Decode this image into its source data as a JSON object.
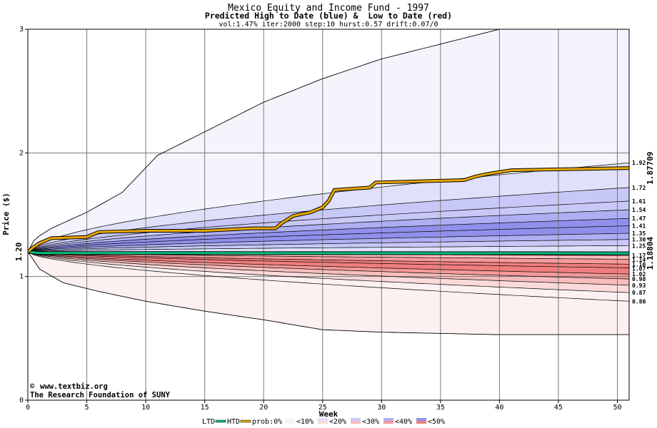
{
  "chart_data": {
    "type": "area",
    "title": "Mexico Equity and Income Fund - 1997",
    "subtitle": "Predicted High to Date (blue) &  Low to Date (red)",
    "params_line": "vol:1.47% iter:2000 step:10 hurst:0.57 drift:0.07/0",
    "xlabel": "Week",
    "ylabel": "Price ($)",
    "xlim": [
      0,
      51
    ],
    "ylim": [
      0,
      3
    ],
    "x_ticks": [
      0,
      5,
      10,
      15,
      20,
      25,
      30,
      35,
      40,
      45,
      50
    ],
    "y_ticks": [
      0,
      1,
      2,
      3
    ],
    "grid": true,
    "start_price_label": "1.20",
    "start_price": 1.2,
    "htd_final_label": "1.87709",
    "htd_final": 1.87709,
    "ltd_final_label": "1.18804",
    "ltd_final": 1.18804,
    "right_labels": [
      "1.92",
      "1.72",
      "1.61",
      "1.54",
      "1.47",
      "1.41",
      "1.35",
      "1.30",
      "1.25",
      "1.17",
      "1.14",
      "1.10",
      "1.07",
      "1.02",
      "0.98",
      "0.93",
      "0.87",
      "0.80"
    ],
    "outer_high": [
      [
        0,
        1.2
      ],
      [
        0.5,
        1.29
      ],
      [
        1,
        1.33
      ],
      [
        2,
        1.39
      ],
      [
        5,
        1.52
      ],
      [
        8,
        1.68
      ],
      [
        11,
        1.98
      ],
      [
        15,
        2.17
      ],
      [
        20,
        2.41
      ],
      [
        25,
        2.6
      ],
      [
        30,
        2.76
      ],
      [
        35,
        2.88
      ],
      [
        40,
        3.0
      ]
    ],
    "outer_low": [
      [
        0,
        1.2
      ],
      [
        1,
        1.06
      ],
      [
        3,
        0.95
      ],
      [
        6,
        0.88
      ],
      [
        10,
        0.8
      ],
      [
        15,
        0.72
      ],
      [
        20,
        0.65
      ],
      [
        25,
        0.57
      ],
      [
        30,
        0.55
      ],
      [
        40,
        0.53
      ],
      [
        51,
        0.53
      ]
    ],
    "quantile_curves": [
      {
        "final": 1.92,
        "side": "high"
      },
      {
        "final": 1.72,
        "side": "high"
      },
      {
        "final": 1.61,
        "side": "high"
      },
      {
        "final": 1.54,
        "side": "high"
      },
      {
        "final": 1.47,
        "side": "high"
      },
      {
        "final": 1.41,
        "side": "high"
      },
      {
        "final": 1.35,
        "side": "high"
      },
      {
        "final": 1.3,
        "side": "high"
      },
      {
        "final": 1.25,
        "side": "high"
      },
      {
        "final": 1.17,
        "side": "low"
      },
      {
        "final": 1.14,
        "side": "low"
      },
      {
        "final": 1.1,
        "side": "low"
      },
      {
        "final": 1.07,
        "side": "low"
      },
      {
        "final": 1.02,
        "side": "low"
      },
      {
        "final": 0.98,
        "side": "low"
      },
      {
        "final": 0.93,
        "side": "low"
      },
      {
        "final": 0.87,
        "side": "low"
      },
      {
        "final": 0.8,
        "side": "low"
      }
    ],
    "htd_series": [
      [
        0,
        1.2
      ],
      [
        0.5,
        1.24
      ],
      [
        1,
        1.27
      ],
      [
        2,
        1.31
      ],
      [
        5,
        1.32
      ],
      [
        6,
        1.36
      ],
      [
        10,
        1.37
      ],
      [
        15,
        1.37
      ],
      [
        19,
        1.39
      ],
      [
        21,
        1.39
      ],
      [
        21.5,
        1.43
      ],
      [
        22.5,
        1.49
      ],
      [
        24,
        1.52
      ],
      [
        25,
        1.56
      ],
      [
        25.5,
        1.61
      ],
      [
        26,
        1.7
      ],
      [
        29,
        1.72
      ],
      [
        29.5,
        1.76
      ],
      [
        37,
        1.78
      ],
      [
        38,
        1.81
      ],
      [
        39,
        1.83
      ],
      [
        41,
        1.86
      ],
      [
        51,
        1.87709
      ]
    ],
    "ltd_series": [
      [
        0,
        1.2
      ],
      [
        1,
        1.19
      ],
      [
        3,
        1.19
      ],
      [
        51,
        1.188
      ]
    ],
    "legend": {
      "ltd_label": "LTD",
      "htd_label": "HTD",
      "prob_label": "prob:0%",
      "bins": [
        "<10%",
        "<20%",
        "<30%",
        "<40%",
        "<50%"
      ]
    },
    "colors": {
      "htd": "#e8a800",
      "ltd": "#00c080",
      "high_bands": [
        "#f4f4fd",
        "#e0e0fa",
        "#c8c8f6",
        "#aeaef2",
        "#9090ec"
      ],
      "low_bands": [
        "#fdf0f0",
        "#fadada",
        "#f8bcbc",
        "#f59a9a",
        "#f07e7e"
      ],
      "htd_label_color": "#a07800",
      "ltd_label_color": "#00a070"
    }
  },
  "credits": {
    "site": "www.textbiz.org",
    "org": "The Research Foundation of SUNY"
  }
}
